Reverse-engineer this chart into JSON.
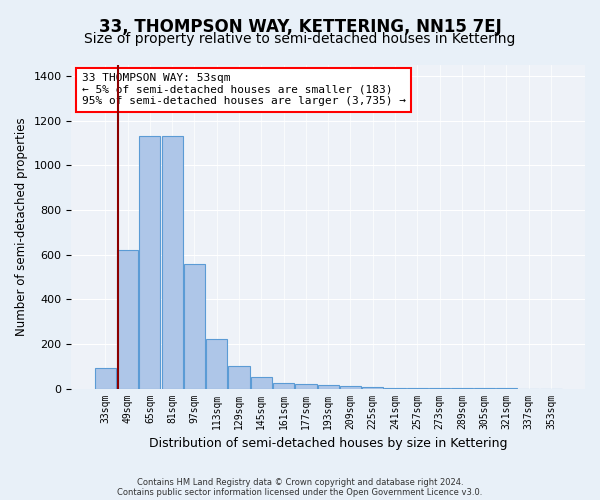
{
  "title": "33, THOMPSON WAY, KETTERING, NN15 7EJ",
  "subtitle": "Size of property relative to semi-detached houses in Kettering",
  "xlabel": "Distribution of semi-detached houses by size in Kettering",
  "ylabel": "Number of semi-detached properties",
  "categories": [
    "33sqm",
    "49sqm",
    "65sqm",
    "81sqm",
    "97sqm",
    "113sqm",
    "129sqm",
    "145sqm",
    "161sqm",
    "177sqm",
    "193sqm",
    "209sqm",
    "225sqm",
    "241sqm",
    "257sqm",
    "273sqm",
    "289sqm",
    "305sqm",
    "321sqm",
    "337sqm",
    "353sqm"
  ],
  "values": [
    90,
    620,
    1130,
    1130,
    560,
    220,
    100,
    50,
    25,
    20,
    15,
    10,
    5,
    3,
    2,
    2,
    1,
    1,
    1,
    0,
    0
  ],
  "bar_color": "#aec6e8",
  "bar_edge_color": "#5b9bd5",
  "red_line_x": 0.58,
  "annotation_text": "33 THOMPSON WAY: 53sqm\n← 5% of semi-detached houses are smaller (183)\n95% of semi-detached houses are larger (3,735) →",
  "annotation_box_color": "white",
  "annotation_box_edge_color": "red",
  "ylim": [
    0,
    1450
  ],
  "yticks": [
    0,
    200,
    400,
    600,
    800,
    1000,
    1200,
    1400
  ],
  "bg_color": "#e8f0f8",
  "plot_bg_color": "#eef2f8",
  "footer_line1": "Contains HM Land Registry data © Crown copyright and database right 2024.",
  "footer_line2": "Contains public sector information licensed under the Open Government Licence v3.0.",
  "title_fontsize": 12,
  "subtitle_fontsize": 10,
  "xlabel_fontsize": 9,
  "ylabel_fontsize": 8.5,
  "annotation_fontsize": 8
}
